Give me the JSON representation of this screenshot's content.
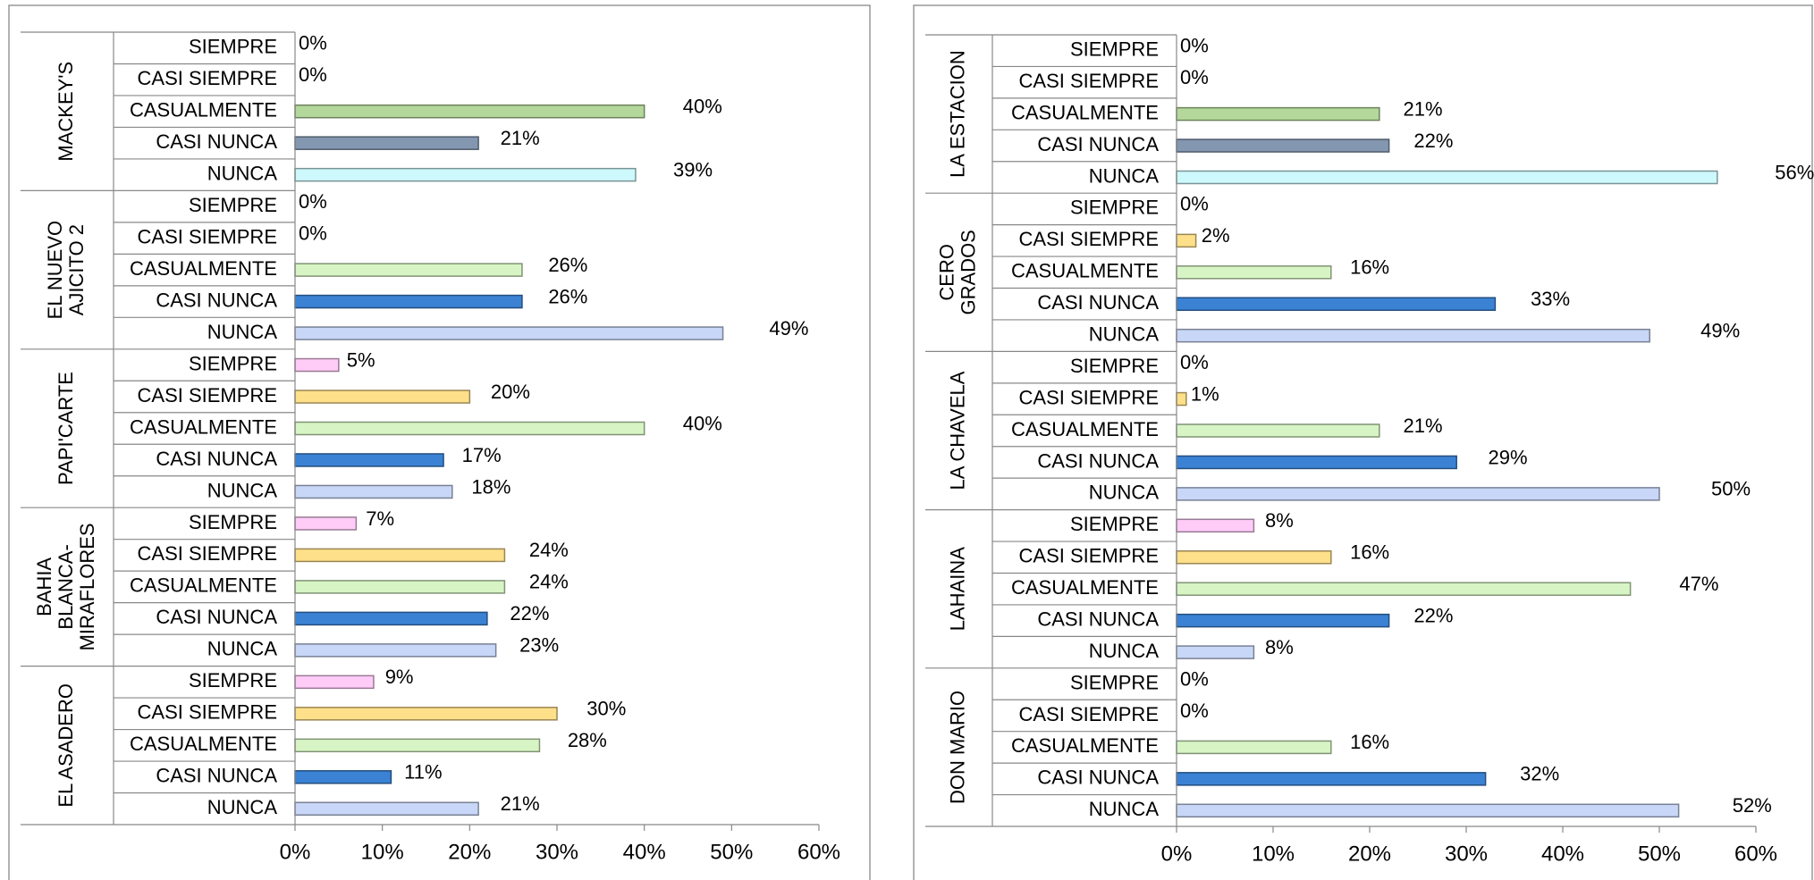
{
  "chart_data": [
    {
      "type": "bar",
      "xlim": [
        0,
        60
      ],
      "xticks": [
        {
          "value": 0,
          "label": "0%"
        },
        {
          "value": 10,
          "label": "10%"
        },
        {
          "value": 20,
          "label": "20%"
        },
        {
          "value": 30,
          "label": "30%"
        },
        {
          "value": 40,
          "label": "40%"
        },
        {
          "value": 50,
          "label": "50%"
        },
        {
          "value": 60,
          "label": "60%"
        }
      ],
      "groups": [
        {
          "name": [
            "MACKEY'S"
          ],
          "categories": [
            "SIEMPRE",
            "CASI SIEMPRE",
            "CASUALMENTE",
            "CASI NUNCA",
            "NUNCA"
          ],
          "values": [
            0,
            0,
            40,
            21,
            39
          ],
          "value_labels": [
            "0%",
            "0%",
            "40%",
            "21%",
            "39%"
          ],
          "colors": [
            "#ffccf7",
            "#ffe08a",
            "#b4d89b",
            "#8497b0",
            "#cdf8fc"
          ]
        },
        {
          "name": [
            "EL NUEVO",
            "AJICITO 2"
          ],
          "categories": [
            "SIEMPRE",
            "CASI SIEMPRE",
            "CASUALMENTE",
            "CASI NUNCA",
            "NUNCA"
          ],
          "values": [
            0,
            0,
            26,
            26,
            49
          ],
          "value_labels": [
            "0%",
            "0%",
            "26%",
            "26%",
            "49%"
          ],
          "colors": [
            "#ffccf7",
            "#ffe08a",
            "#d7f5c4",
            "#3b82d4",
            "#c8d7f7"
          ]
        },
        {
          "name": [
            "PAPI'CARTE"
          ],
          "categories": [
            "SIEMPRE",
            "CASI SIEMPRE",
            "CASUALMENTE",
            "CASI NUNCA",
            "NUNCA"
          ],
          "values": [
            5,
            20,
            40,
            17,
            18
          ],
          "value_labels": [
            "5%",
            "20%",
            "40%",
            "17%",
            "18%"
          ],
          "colors": [
            "#ffccf7",
            "#ffe08a",
            "#d7f5c4",
            "#3b82d4",
            "#c8d7f7"
          ]
        },
        {
          "name": [
            "BAHIA",
            "BLANCA-",
            "MIRAFLORES"
          ],
          "categories": [
            "SIEMPRE",
            "CASI SIEMPRE",
            "CASUALMENTE",
            "CASI NUNCA",
            "NUNCA"
          ],
          "values": [
            7,
            24,
            24,
            22,
            23
          ],
          "value_labels": [
            "7%",
            "24%",
            "24%",
            "22%",
            "23%"
          ],
          "colors": [
            "#ffccf7",
            "#ffe08a",
            "#d7f5c4",
            "#3b82d4",
            "#c8d7f7"
          ]
        },
        {
          "name": [
            "EL ASADERO"
          ],
          "categories": [
            "SIEMPRE",
            "CASI SIEMPRE",
            "CASUALMENTE",
            "CASI NUNCA",
            "NUNCA"
          ],
          "values": [
            9,
            30,
            28,
            11,
            21
          ],
          "value_labels": [
            "9%",
            "30%",
            "28%",
            "11%",
            "21%"
          ],
          "colors": [
            "#ffccf7",
            "#ffe08a",
            "#d7f5c4",
            "#3b82d4",
            "#c8d7f7"
          ]
        }
      ]
    },
    {
      "type": "bar",
      "xlim": [
        0,
        60
      ],
      "xticks": [
        {
          "value": 0,
          "label": "0%"
        },
        {
          "value": 10,
          "label": "10%"
        },
        {
          "value": 20,
          "label": "20%"
        },
        {
          "value": 30,
          "label": "30%"
        },
        {
          "value": 40,
          "label": "40%"
        },
        {
          "value": 50,
          "label": "50%"
        },
        {
          "value": 60,
          "label": "60%"
        }
      ],
      "groups": [
        {
          "name": [
            "LA ESTACION"
          ],
          "categories": [
            "SIEMPRE",
            "CASI SIEMPRE",
            "CASUALMENTE",
            "CASI NUNCA",
            "NUNCA"
          ],
          "values": [
            0,
            0,
            21,
            22,
            56
          ],
          "value_labels": [
            "0%",
            "0%",
            "21%",
            "22%",
            "56%"
          ],
          "colors": [
            "#ffccf7",
            "#ffe08a",
            "#b4d89b",
            "#8497b0",
            "#cdf8fc"
          ]
        },
        {
          "name": [
            "CERO",
            "GRADOS"
          ],
          "categories": [
            "SIEMPRE",
            "CASI SIEMPRE",
            "CASUALMENTE",
            "CASI NUNCA",
            "NUNCA"
          ],
          "values": [
            0,
            2,
            16,
            33,
            49
          ],
          "value_labels": [
            "0%",
            "2%",
            "16%",
            "33%",
            "49%"
          ],
          "colors": [
            "#ffccf7",
            "#ffe08a",
            "#d7f5c4",
            "#3b82d4",
            "#c8d7f7"
          ]
        },
        {
          "name": [
            "LA CHAVELA"
          ],
          "categories": [
            "SIEMPRE",
            "CASI SIEMPRE",
            "CASUALMENTE",
            "CASI NUNCA",
            "NUNCA"
          ],
          "values": [
            0,
            1,
            21,
            29,
            50
          ],
          "value_labels": [
            "0%",
            "1%",
            "21%",
            "29%",
            "50%"
          ],
          "colors": [
            "#ffccf7",
            "#ffe08a",
            "#d7f5c4",
            "#3b82d4",
            "#c8d7f7"
          ]
        },
        {
          "name": [
            "LAHAINA"
          ],
          "categories": [
            "SIEMPRE",
            "CASI SIEMPRE",
            "CASUALMENTE",
            "CASI NUNCA",
            "NUNCA"
          ],
          "values": [
            8,
            16,
            47,
            22,
            8
          ],
          "value_labels": [
            "8%",
            "16%",
            "47%",
            "22%",
            "8%"
          ],
          "colors": [
            "#ffccf7",
            "#ffe08a",
            "#d7f5c4",
            "#3b82d4",
            "#c8d7f7"
          ]
        },
        {
          "name": [
            "DON MARIO"
          ],
          "categories": [
            "SIEMPRE",
            "CASI SIEMPRE",
            "CASUALMENTE",
            "CASI NUNCA",
            "NUNCA"
          ],
          "values": [
            0,
            0,
            16,
            32,
            52
          ],
          "value_labels": [
            "0%",
            "0%",
            "16%",
            "32%",
            "52%"
          ],
          "colors": [
            "#ffccf7",
            "#ffe08a",
            "#d7f5c4",
            "#3b82d4",
            "#c8d7f7"
          ]
        }
      ]
    }
  ]
}
